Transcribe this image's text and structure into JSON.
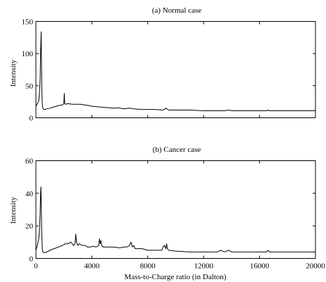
{
  "chart_data": [
    {
      "type": "line",
      "title": "(a) Normal case",
      "xlabel": "",
      "ylabel": "Intensity",
      "xlim": [
        0,
        20000
      ],
      "ylim": [
        0,
        150
      ],
      "x_ticks": [],
      "y_ticks": [
        0,
        50,
        100,
        150
      ],
      "grid": false,
      "series": [
        {
          "x": [
            0,
            100,
            200,
            260,
            300,
            330,
            360,
            380,
            400,
            430,
            460,
            500,
            560,
            650,
            800,
            1000,
            1300,
            1600,
            1900,
            2000,
            2030,
            2060,
            2100,
            2300,
            2600,
            2900,
            3200,
            3500,
            3800,
            4000,
            4500,
            5000,
            5500,
            5800,
            5900,
            6000,
            6300,
            6700,
            7000,
            7500,
            8000,
            8500,
            9000,
            9200,
            9300,
            9500,
            10000,
            11000,
            12000,
            13000,
            13500,
            13800,
            14000,
            14500,
            15000,
            16000,
            16500,
            16600,
            16700,
            17000,
            18000,
            19000,
            20000
          ],
          "y": [
            18,
            22,
            26,
            40,
            60,
            100,
            118,
            134,
            90,
            40,
            22,
            15,
            13,
            13,
            14,
            15,
            17,
            19,
            20,
            22,
            38,
            23,
            21,
            22,
            21,
            21,
            21,
            20,
            19,
            18,
            17,
            16,
            15,
            15,
            16,
            15,
            14,
            15,
            14,
            13,
            13,
            13,
            12,
            13,
            15,
            12,
            12,
            12,
            11,
            11,
            11,
            12,
            11,
            11,
            11,
            11,
            11,
            12,
            11,
            11,
            11,
            11,
            11
          ]
        }
      ]
    },
    {
      "type": "line",
      "title": "(b) Cancer case",
      "xlabel": "Mass-to-Charge ratio (in Dalton)",
      "ylabel": "Intensity",
      "xlim": [
        0,
        20000
      ],
      "ylim": [
        0,
        60
      ],
      "x_ticks": [
        0,
        4000,
        8000,
        12000,
        16000,
        20000
      ],
      "y_ticks": [
        0,
        20,
        40,
        60
      ],
      "grid": false,
      "series": [
        {
          "x": [
            0,
            100,
            200,
            260,
            300,
            330,
            360,
            390,
            420,
            460,
            500,
            600,
            800,
            1000,
            1300,
            1600,
            1900,
            2100,
            2300,
            2500,
            2700,
            2800,
            2850,
            2900,
            2950,
            3000,
            3100,
            3300,
            3500,
            3700,
            3900,
            4100,
            4300,
            4500,
            4550,
            4600,
            4650,
            4700,
            4800,
            5000,
            5500,
            6000,
            6300,
            6500,
            6700,
            6800,
            6900,
            7000,
            7100,
            7300,
            7600,
            8000,
            8500,
            9000,
            9100,
            9200,
            9300,
            9350,
            9400,
            9500,
            10000,
            11000,
            12000,
            13000,
            13200,
            13500,
            13800,
            14000,
            14500,
            15000,
            16000,
            16500,
            16600,
            16700,
            17000,
            18000,
            19000,
            20000
          ],
          "y": [
            5,
            8,
            12,
            18,
            28,
            40,
            44,
            30,
            15,
            6,
            4,
            3.5,
            4,
            5,
            6,
            7,
            8,
            9,
            9,
            10,
            8,
            9,
            15,
            10,
            9,
            8,
            9,
            8,
            8,
            7,
            7,
            7.5,
            7,
            8,
            12,
            9,
            11,
            8,
            7,
            7,
            7,
            6.5,
            7,
            7,
            8,
            10,
            7,
            8,
            6,
            6,
            6,
            5,
            5,
            5,
            7,
            8,
            6,
            9,
            6,
            5,
            4.5,
            4,
            4,
            4,
            5,
            4,
            5,
            4,
            4,
            4,
            4,
            4,
            5,
            4,
            4,
            4,
            4,
            4
          ]
        }
      ]
    }
  ]
}
